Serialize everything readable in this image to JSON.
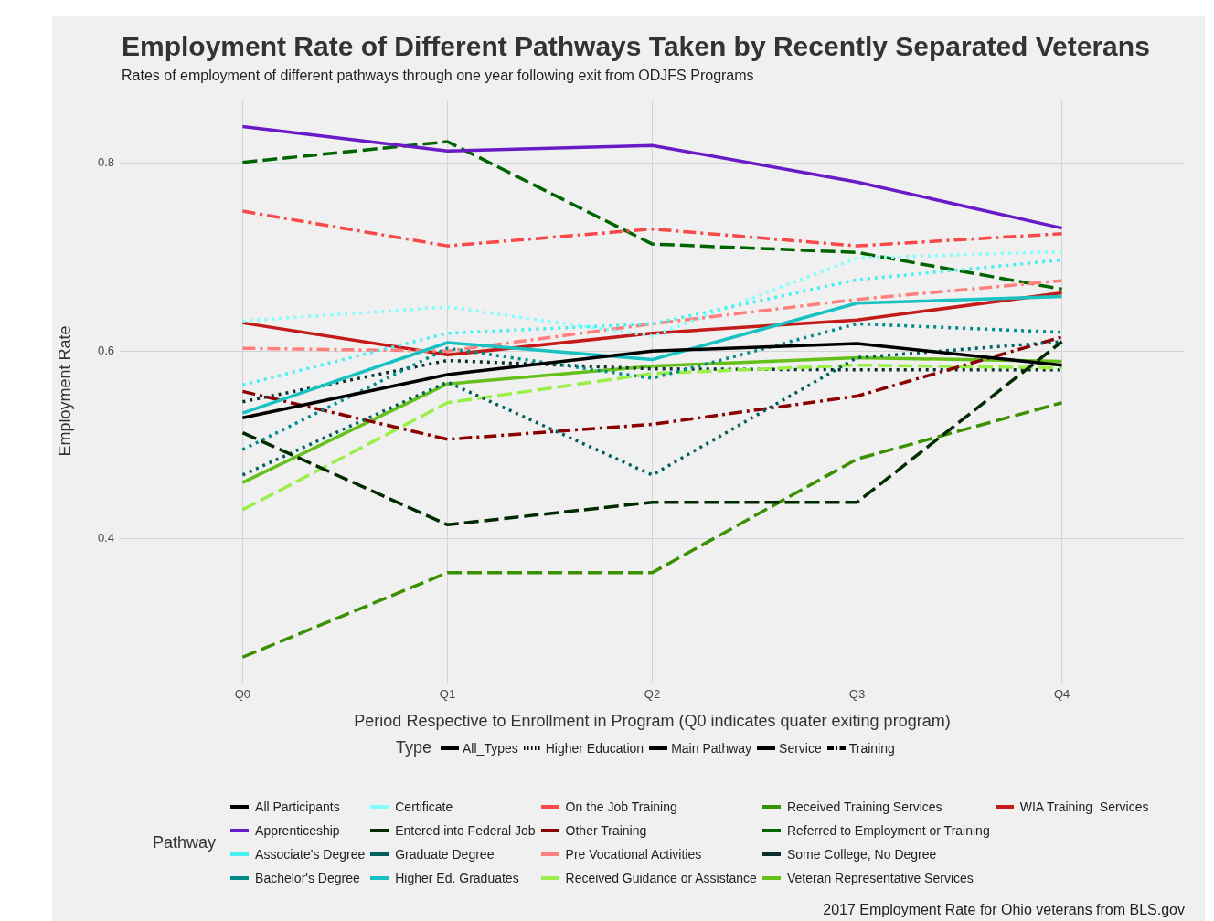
{
  "chart_data": {
    "type": "line",
    "title": "Employment Rate of Different Pathways Taken by Recently Separated Veterans",
    "subtitle": "Rates of employment of different pathways through one year following exit from ODJFS Programs",
    "xlabel": "Period Respective to Enrollment in Program (Q0 indicates quater exiting program)",
    "ylabel": "Employment Rate",
    "legend_title": "Pathway",
    "legend": "bottom",
    "grid": true,
    "marker": "none",
    "categories": [
      "Q0",
      "Q1",
      "Q2",
      "Q3",
      "Q4"
    ],
    "ylim": [
      0.247,
      0.868
    ],
    "yticks": [
      0.4,
      0.6,
      0.8
    ],
    "annotations": [
      "Type",
      "All_Types",
      "Higher Education",
      "Main Pathway",
      "Service",
      "Training",
      "2017 Employment Rate for Ohio veterans from BLS.gov"
    ],
    "series": [
      {
        "name": "All Participants",
        "color": "#000000",
        "line_style": "solid",
        "values": [
          0.529,
          0.575,
          0.6,
          0.608,
          0.585
        ]
      },
      {
        "name": "Apprenticeship",
        "color": "#6a1bc8",
        "line_style": "solid",
        "values": [
          0.839,
          0.813,
          0.819,
          0.78,
          0.731
        ]
      },
      {
        "name": "Associate's Degree",
        "color": "#44f0f0",
        "line_style": "dotted",
        "values": [
          0.564,
          0.619,
          0.629,
          0.676,
          0.697
        ]
      },
      {
        "name": "Bachelor's Degree",
        "color": "#008b8b",
        "line_style": "dotted",
        "values": [
          0.495,
          0.603,
          0.571,
          0.629,
          0.62
        ]
      },
      {
        "name": "Certificate",
        "color": "#80ffff",
        "line_style": "dotted",
        "values": [
          0.632,
          0.647,
          0.616,
          0.699,
          0.706
        ]
      },
      {
        "name": "Entered into Federal Job",
        "color": "#002a00",
        "line_style": "dashed",
        "values": [
          0.513,
          0.415,
          0.439,
          0.439,
          0.61
        ]
      },
      {
        "name": "Graduate Degree",
        "color": "#005f5f",
        "line_style": "dotted",
        "values": [
          0.468,
          0.567,
          0.468,
          0.593,
          0.61
        ]
      },
      {
        "name": "Higher Ed. Graduates",
        "color": "#1ac1c1",
        "line_style": "solid",
        "values": [
          0.534,
          0.609,
          0.591,
          0.651,
          0.658
        ]
      },
      {
        "name": "On the Job Training",
        "color": "#f84848",
        "line_style": "dashdot",
        "values": [
          0.749,
          0.712,
          0.73,
          0.712,
          0.725
        ]
      },
      {
        "name": "Other Training",
        "color": "#8b0000",
        "line_style": "dashdot",
        "values": [
          0.557,
          0.506,
          0.522,
          0.552,
          0.615
        ]
      },
      {
        "name": "Pre Vocational Activities",
        "color": "#ff7f7f",
        "line_style": "dashdot",
        "values": [
          0.603,
          0.6,
          0.629,
          0.655,
          0.675
        ]
      },
      {
        "name": "Received Guidance or Assistance",
        "color": "#9aef48",
        "line_style": "dashed",
        "values": [
          0.431,
          0.545,
          0.576,
          0.585,
          0.582
        ]
      },
      {
        "name": "Received Training Services",
        "color": "#3a9000",
        "line_style": "dashed",
        "values": [
          0.274,
          0.364,
          0.364,
          0.485,
          0.545
        ]
      },
      {
        "name": "Referred to Employment or Training",
        "color": "#006400",
        "line_style": "dashed",
        "values": [
          0.801,
          0.823,
          0.714,
          0.705,
          0.666
        ]
      },
      {
        "name": "Some College, No Degree",
        "color": "#0a3030",
        "line_style": "dotted",
        "values": [
          0.546,
          0.59,
          0.581,
          0.58,
          0.58
        ]
      },
      {
        "name": "Veteran Representative Services",
        "color": "#66c01a",
        "line_style": "solid",
        "values": [
          0.46,
          0.565,
          0.584,
          0.593,
          0.589
        ]
      },
      {
        "name": "WIA Training  Services",
        "color": "#c41a1a",
        "line_style": "solid",
        "values": [
          0.63,
          0.596,
          0.619,
          0.633,
          0.662
        ]
      }
    ]
  }
}
